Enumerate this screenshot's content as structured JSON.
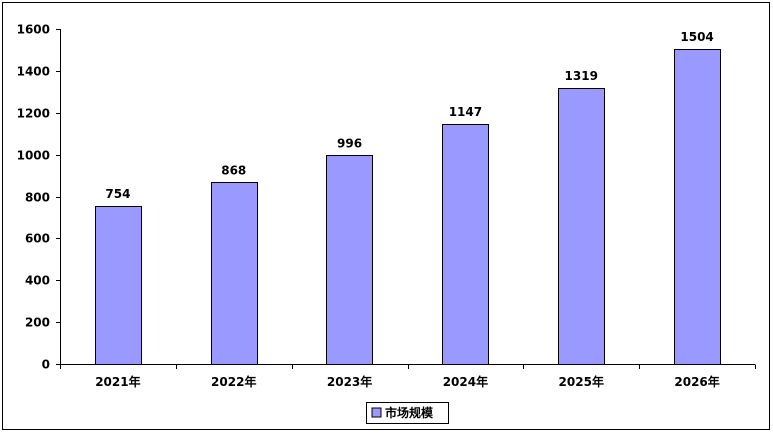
{
  "chart_data": {
    "type": "bar",
    "title": "",
    "xlabel": "",
    "ylabel": "",
    "categories": [
      "2021年",
      "2022年",
      "2023年",
      "2024年",
      "2025年",
      "2026年"
    ],
    "series": [
      {
        "name": "市场规模",
        "values": [
          754,
          868,
          996,
          1147,
          1319,
          1504
        ],
        "color": "#9999ff"
      }
    ],
    "ylim": [
      0,
      1600
    ],
    "yticks": [
      0,
      200,
      400,
      600,
      800,
      1000,
      1200,
      1400,
      1600
    ],
    "data_labels": true,
    "grid": false,
    "legend": "bottom"
  }
}
